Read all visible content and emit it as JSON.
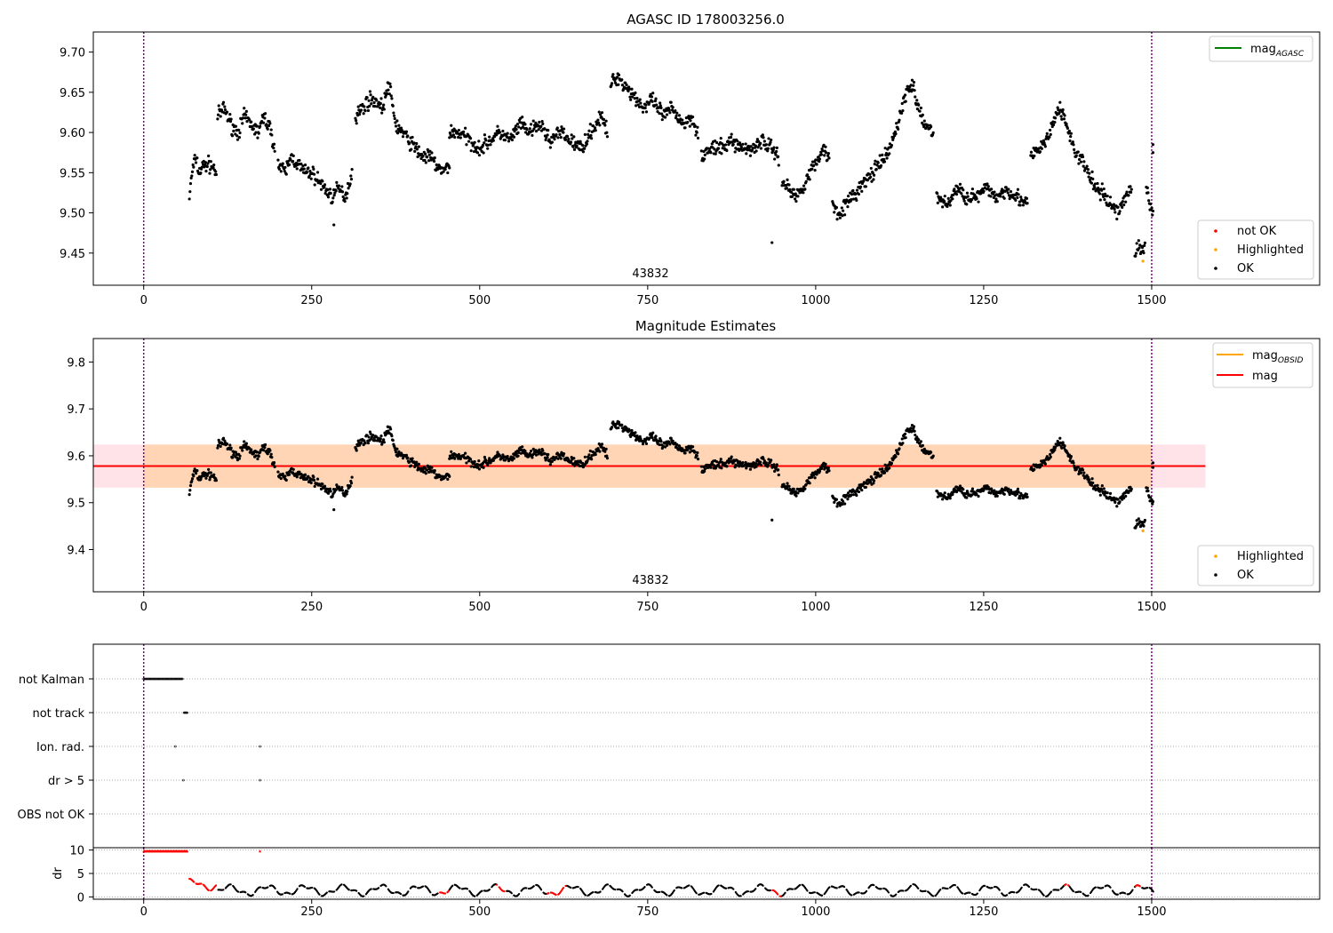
{
  "figure_title": "AGASC ID 178003256.0",
  "chart_data": [
    {
      "type": "scatter",
      "title": "AGASC ID 178003256.0",
      "xlabel": "",
      "ylabel": "",
      "xlim": [
        -75,
        1750
      ],
      "ylim": [
        9.41,
        9.725
      ],
      "xticks": [
        0,
        250,
        500,
        750,
        1000,
        1250,
        1500
      ],
      "xtick_labels": [
        "0",
        "250",
        "500",
        "750",
        "1000",
        "1250",
        "1500"
      ],
      "yticks": [
        9.45,
        9.5,
        9.55,
        9.6,
        9.65,
        9.7
      ],
      "ytick_labels": [
        "9.45",
        "9.50",
        "9.55",
        "9.60",
        "9.65",
        "9.70"
      ],
      "obsid_label": "43832",
      "obs_boundaries": [
        0,
        1500
      ],
      "boundary_color": "#800080",
      "legend_top": {
        "placement": "upper right",
        "entries": [
          {
            "label": "mag",
            "sub": "AGASC",
            "color": "#008000",
            "marker": "line"
          }
        ]
      },
      "legend_bottom": {
        "placement": "lower right",
        "entries": [
          {
            "label": "not OK",
            "color": "#ff0000",
            "marker": "dot"
          },
          {
            "label": "Highlighted",
            "color": "#ffa500",
            "marker": "dot"
          },
          {
            "label": "OK",
            "color": "#000000",
            "marker": "dot"
          }
        ]
      },
      "segments": [
        {
          "x": [
            68,
            72,
            78,
            82,
            90,
            100,
            108
          ],
          "y": [
            9.52,
            9.55,
            9.57,
            9.55,
            9.56,
            9.56,
            9.55
          ]
        },
        {
          "x": [
            110,
            120,
            130,
            140,
            150,
            160,
            170,
            180,
            190,
            195
          ],
          "y": [
            9.62,
            9.63,
            9.61,
            9.6,
            9.62,
            9.61,
            9.6,
            9.62,
            9.6,
            9.58
          ]
        },
        {
          "x": [
            200,
            210,
            220,
            230,
            240,
            250,
            260,
            270,
            280,
            290,
            300,
            310
          ],
          "y": [
            9.56,
            9.55,
            9.57,
            9.56,
            9.55,
            9.55,
            9.54,
            9.53,
            9.52,
            9.53,
            9.52,
            9.55
          ]
        },
        {
          "x": [
            315,
            325,
            335,
            345,
            355,
            365,
            375,
            385,
            395,
            405,
            415,
            425,
            435,
            445,
            455
          ],
          "y": [
            9.62,
            9.63,
            9.64,
            9.64,
            9.63,
            9.66,
            9.61,
            9.6,
            9.59,
            9.58,
            9.57,
            9.57,
            9.56,
            9.55,
            9.56
          ]
        },
        {
          "x": [
            455,
            470,
            485,
            500,
            515,
            530,
            545,
            560,
            575,
            590,
            605,
            620,
            635,
            650,
            665,
            680,
            690
          ],
          "y": [
            9.6,
            9.6,
            9.59,
            9.58,
            9.59,
            9.6,
            9.59,
            9.61,
            9.6,
            9.61,
            9.59,
            9.6,
            9.59,
            9.58,
            9.6,
            9.62,
            9.6
          ]
        },
        {
          "x": [
            695,
            705,
            715,
            725,
            735,
            745,
            755,
            765,
            775,
            785,
            795,
            805,
            815,
            825
          ],
          "y": [
            9.66,
            9.67,
            9.66,
            9.65,
            9.64,
            9.63,
            9.64,
            9.63,
            9.62,
            9.63,
            9.62,
            9.61,
            9.62,
            9.6
          ]
        },
        {
          "x": [
            830,
            845,
            860,
            875,
            890,
            905,
            920,
            935,
            945
          ],
          "y": [
            9.57,
            9.58,
            9.58,
            9.59,
            9.58,
            9.58,
            9.59,
            9.58,
            9.57
          ]
        },
        {
          "x": [
            950,
            960,
            970,
            980,
            990,
            1000,
            1010,
            1020
          ],
          "y": [
            9.54,
            9.53,
            9.52,
            9.53,
            9.55,
            9.56,
            9.58,
            9.57
          ]
        },
        {
          "x": [
            1025,
            1035,
            1045,
            1055,
            1065,
            1075,
            1085,
            1095,
            1105,
            1115,
            1125,
            1135,
            1145,
            1155,
            1165,
            1175
          ],
          "y": [
            9.51,
            9.5,
            9.51,
            9.52,
            9.53,
            9.54,
            9.55,
            9.56,
            9.57,
            9.59,
            9.62,
            9.65,
            9.66,
            9.62,
            9.61,
            9.6
          ]
        },
        {
          "x": [
            1180,
            1195,
            1210,
            1225,
            1240,
            1255,
            1270,
            1285,
            1300,
            1315
          ],
          "y": [
            9.52,
            9.51,
            9.53,
            9.52,
            9.52,
            9.53,
            9.52,
            9.53,
            9.52,
            9.51
          ]
        },
        {
          "x": [
            1320,
            1335,
            1350,
            1360,
            1370,
            1380,
            1390,
            1400,
            1410,
            1420,
            1430,
            1440,
            1450,
            1460,
            1470
          ],
          "y": [
            9.57,
            9.58,
            9.6,
            9.63,
            9.62,
            9.59,
            9.57,
            9.56,
            9.54,
            9.53,
            9.52,
            9.51,
            9.5,
            9.52,
            9.53
          ]
        },
        {
          "x": [
            1475,
            1480,
            1485,
            1490
          ],
          "y": [
            9.45,
            9.46,
            9.45,
            9.46
          ]
        },
        {
          "x": [
            1492,
            1497,
            1502
          ],
          "y": [
            9.53,
            9.51,
            9.5
          ]
        }
      ],
      "outliers": [
        {
          "x": 283,
          "y": 9.485
        },
        {
          "x": 935,
          "y": 9.463
        },
        {
          "x": 1502,
          "y": 9.575
        },
        {
          "x": 1502,
          "y": 9.585
        }
      ],
      "highlighted": [
        {
          "x": 1487,
          "y": 9.44
        }
      ]
    },
    {
      "type": "scatter",
      "title": "Magnitude Estimates",
      "xlabel": "",
      "ylabel": "",
      "xlim": [
        -75,
        1750
      ],
      "ylim": [
        9.31,
        9.85
      ],
      "xticks": [
        0,
        250,
        500,
        750,
        1000,
        1250,
        1500
      ],
      "xtick_labels": [
        "0",
        "250",
        "500",
        "750",
        "1000",
        "1250",
        "1500"
      ],
      "yticks": [
        9.4,
        9.5,
        9.6,
        9.7,
        9.8
      ],
      "ytick_labels": [
        "9.4",
        "9.5",
        "9.6",
        "9.7",
        "9.8"
      ],
      "obsid_label": "43832",
      "mag": 9.578,
      "mag_band": [
        9.532,
        9.624
      ],
      "band_x_range": [
        -75,
        1580
      ],
      "mag_obsid": 9.578,
      "legend_top": {
        "placement": "upper right",
        "entries": [
          {
            "label": "mag",
            "sub": "OBSID",
            "color": "#ffa500",
            "marker": "line"
          },
          {
            "label": "mag",
            "sub": "",
            "color": "#ff0000",
            "marker": "line"
          }
        ]
      },
      "legend_bottom": {
        "placement": "lower right",
        "entries": [
          {
            "label": "Highlighted",
            "color": "#ffa500",
            "marker": "dot"
          },
          {
            "label": "OK",
            "color": "#000000",
            "marker": "dot"
          }
        ]
      }
    },
    {
      "type": "scatter",
      "title": "",
      "xlabel": "",
      "ylabel": "",
      "xlim": [
        -75,
        1750
      ],
      "flag_labels": [
        "not Kalman",
        "not track",
        "Ion. rad.",
        "dr > 5",
        "OBS not OK"
      ],
      "flags": [
        {
          "label": "not Kalman",
          "x_from": 0,
          "x_to": 58
        },
        {
          "label": "not track",
          "x_from": 60,
          "x_to": 66
        },
        {
          "label": "Ion. rad.",
          "points": [
            47,
            173
          ]
        },
        {
          "label": "dr > 5",
          "points": [
            59,
            173
          ]
        },
        {
          "label": "OBS not OK",
          "points": []
        }
      ]
    },
    {
      "type": "scatter",
      "title": "",
      "xlabel": "",
      "ylabel": "dr",
      "xlim": [
        -75,
        1750
      ],
      "ylim": [
        -0.5,
        10.5
      ],
      "yticks": [
        0,
        5,
        10
      ],
      "ytick_labels": [
        "0",
        "5",
        "10"
      ],
      "xticks": [
        0,
        250,
        500,
        750,
        1000,
        1250,
        1500
      ],
      "xtick_labels": [
        "0",
        "250",
        "500",
        "750",
        "1000",
        "1250",
        "1500"
      ],
      "dr_capped_red": {
        "x_from": 0,
        "x_to": 66,
        "y": 9.8
      },
      "dr_red_points": [
        {
          "x": 173,
          "y": 9.8
        }
      ],
      "red_runs": [
        {
          "x_from": 68,
          "x_to": 110
        },
        {
          "x_from": 440,
          "x_to": 455
        },
        {
          "x_from": 525,
          "x_to": 540
        },
        {
          "x_from": 600,
          "x_to": 630
        },
        {
          "x_from": 935,
          "x_to": 950
        },
        {
          "x_from": 1370,
          "x_to": 1378
        },
        {
          "x_from": 1475,
          "x_to": 1485
        }
      ]
    }
  ]
}
